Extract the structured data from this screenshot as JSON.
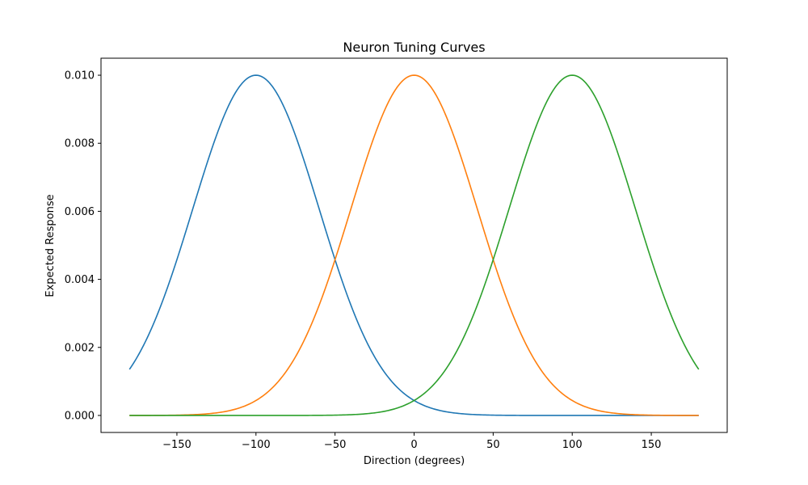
{
  "chart_data": {
    "type": "line",
    "title": "Neuron Tuning Curves",
    "xlabel": "Direction (degrees)",
    "ylabel": "Expected Response",
    "xlim": [
      -198,
      198
    ],
    "ylim": [
      -0.0005,
      0.0105
    ],
    "xticks": [
      -150,
      -100,
      -50,
      0,
      50,
      100,
      150
    ],
    "xtick_labels": [
      "−150",
      "−100",
      "−50",
      "0",
      "50",
      "100",
      "150"
    ],
    "yticks": [
      0,
      0.002,
      0.004,
      0.006,
      0.008,
      0.01
    ],
    "ytick_labels": [
      "0.000",
      "0.002",
      "0.004",
      "0.006",
      "0.008",
      "0.010"
    ],
    "grid": false,
    "legend": false,
    "x_range": [
      -180,
      180
    ],
    "series": [
      {
        "color": "#1f77b4",
        "peak_x": -100,
        "peak_y": 0.01,
        "sigma": 40,
        "x": [
          -180,
          -170,
          -160,
          -150,
          -140,
          -130,
          -120,
          -110,
          -100,
          -90,
          -80,
          -70,
          -60,
          -50,
          -40,
          -30,
          -20,
          -10,
          0,
          10,
          20,
          30,
          40,
          50,
          60,
          70,
          80,
          90,
          100,
          110,
          120,
          130,
          140,
          150,
          160,
          170,
          180
        ],
        "y": [
          0.00135,
          0.00216,
          0.00325,
          0.00458,
          0.00607,
          0.00755,
          0.00882,
          0.00969,
          0.01,
          0.00969,
          0.00882,
          0.00755,
          0.00607,
          0.00458,
          0.00325,
          0.00216,
          0.00135,
          0.00079,
          0.00044,
          0.00023,
          0.00011,
          5e-05,
          2e-05,
          1e-05,
          0.0,
          0.0,
          0.0,
          0.0,
          0.0,
          0.0,
          0.0,
          0.0,
          0.0,
          0.0,
          0.0,
          0.0,
          0.0
        ]
      },
      {
        "color": "#ff7f0e",
        "peak_x": 0,
        "peak_y": 0.01,
        "sigma": 40,
        "x": [
          -180,
          -170,
          -160,
          -150,
          -140,
          -130,
          -120,
          -110,
          -100,
          -90,
          -80,
          -70,
          -60,
          -50,
          -40,
          -30,
          -20,
          -10,
          0,
          10,
          20,
          30,
          40,
          50,
          60,
          70,
          80,
          90,
          100,
          110,
          120,
          130,
          140,
          150,
          160,
          170,
          180
        ],
        "y": [
          0.0,
          0.0,
          1e-05,
          1e-05,
          2e-05,
          5e-05,
          0.00011,
          0.00023,
          0.00044,
          0.00079,
          0.00135,
          0.00216,
          0.00325,
          0.00458,
          0.00607,
          0.00755,
          0.00882,
          0.00969,
          0.01,
          0.00969,
          0.00882,
          0.00755,
          0.00607,
          0.00458,
          0.00325,
          0.00216,
          0.00135,
          0.00079,
          0.00044,
          0.00023,
          0.00011,
          5e-05,
          2e-05,
          1e-05,
          1e-05,
          0.0,
          0.0
        ]
      },
      {
        "color": "#2ca02c",
        "peak_x": 100,
        "peak_y": 0.01,
        "sigma": 40,
        "x": [
          -180,
          -170,
          -160,
          -150,
          -140,
          -130,
          -120,
          -110,
          -100,
          -90,
          -80,
          -70,
          -60,
          -50,
          -40,
          -30,
          -20,
          -10,
          0,
          10,
          20,
          30,
          40,
          50,
          60,
          70,
          80,
          90,
          100,
          110,
          120,
          130,
          140,
          150,
          160,
          170,
          180
        ],
        "y": [
          0.0,
          0.0,
          0.0,
          0.0,
          0.0,
          0.0,
          0.0,
          0.0,
          0.0,
          0.0,
          0.0,
          0.0,
          0.0,
          1e-05,
          2e-05,
          5e-05,
          0.00011,
          0.00023,
          0.00044,
          0.00079,
          0.00135,
          0.00216,
          0.00325,
          0.00458,
          0.00607,
          0.00755,
          0.00882,
          0.00969,
          0.01,
          0.00969,
          0.00882,
          0.00755,
          0.00607,
          0.00458,
          0.00325,
          0.00216,
          0.00135
        ]
      }
    ]
  }
}
